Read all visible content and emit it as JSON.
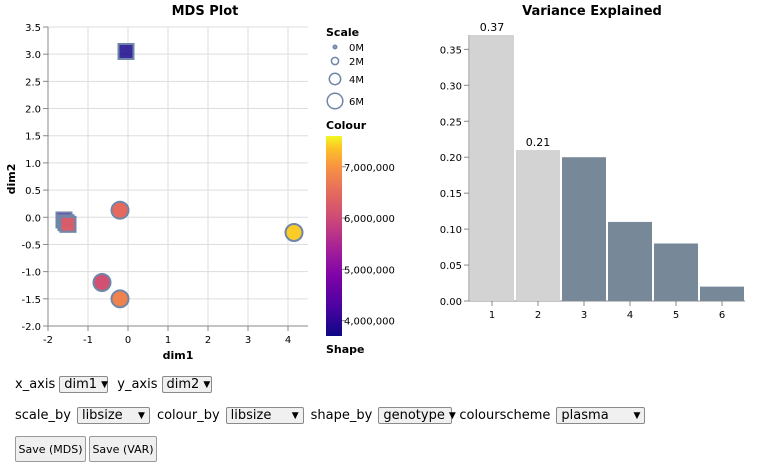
{
  "chart_data": [
    {
      "type": "scatter",
      "title": "MDS Plot",
      "xlabel": "dim1",
      "ylabel": "dim2",
      "xlim": [
        -2,
        4.5
      ],
      "ylim": [
        -2,
        3.5
      ],
      "x_ticks": [
        "-2",
        "-1",
        "0",
        "1",
        "2",
        "3",
        "4"
      ],
      "y_ticks": [
        "-2.0",
        "-1.5",
        "-1.0",
        "-0.5",
        "0.0",
        "0.5",
        "1.0",
        "1.5",
        "2.0",
        "2.5",
        "3.0",
        "3.5"
      ],
      "grid": true,
      "points": [
        {
          "x": -0.05,
          "y": 3.05,
          "shape": "square",
          "libsize": 3800000
        },
        {
          "x": -1.6,
          "y": -0.05,
          "shape": "square",
          "libsize": 4500000
        },
        {
          "x": -1.55,
          "y": -0.1,
          "shape": "square",
          "libsize": 6200000
        },
        {
          "x": -1.5,
          "y": -0.13,
          "shape": "square",
          "libsize": 6300000
        },
        {
          "x": -0.2,
          "y": 0.13,
          "shape": "circle",
          "libsize": 6500000
        },
        {
          "x": 4.15,
          "y": -0.28,
          "shape": "circle",
          "libsize": 7400000
        },
        {
          "x": -0.65,
          "y": -1.2,
          "shape": "circle",
          "libsize": 6100000
        },
        {
          "x": -0.2,
          "y": -1.5,
          "shape": "circle",
          "libsize": 6800000
        }
      ]
    },
    {
      "type": "bar",
      "title": "Variance Explained",
      "categories": [
        "1",
        "2",
        "3",
        "4",
        "5",
        "6"
      ],
      "values": [
        0.37,
        0.21,
        0.2,
        0.11,
        0.08,
        0.02
      ],
      "data_labels": [
        "0.37",
        "0.21",
        "",
        "",
        "",
        ""
      ],
      "bar_colors": [
        "#d3d3d3",
        "#d3d3d3",
        "#778899",
        "#778899",
        "#778899",
        "#778899"
      ],
      "ylim": [
        0,
        0.37
      ],
      "y_ticks": [
        "0.00",
        "0.05",
        "0.10",
        "0.15",
        "0.20",
        "0.25",
        "0.30",
        "0.35"
      ]
    }
  ],
  "legend": {
    "scale_title": "Scale",
    "scale_items": [
      {
        "label": "0M",
        "value": 0
      },
      {
        "label": "2M",
        "value": 2
      },
      {
        "label": "4M",
        "value": 4
      },
      {
        "label": "6M",
        "value": 6
      }
    ],
    "colour_title": "Colour",
    "colour_ticks": [
      "7,000,000",
      "6,000,000",
      "5,000,000",
      "4,000,000"
    ],
    "colour_range": [
      3700000,
      7600000
    ],
    "shape_title": "Shape"
  },
  "controls": {
    "x_axis_label": "x_axis",
    "x_axis_value": "dim1",
    "y_axis_label": "y_axis",
    "y_axis_value": "dim2",
    "scale_by_label": "scale_by",
    "scale_by_value": "libsize",
    "colour_by_label": "colour_by",
    "colour_by_value": "libsize",
    "shape_by_label": "shape_by",
    "shape_by_value": "genotype",
    "colourscheme_label": "colourscheme",
    "colourscheme_value": "plasma"
  },
  "buttons": {
    "save_mds": "Save (MDS)",
    "save_var": "Save (VAR)"
  },
  "colors": {
    "stroke": "#6f86a8",
    "grid": "#dddddd",
    "bar_selected": "#d3d3d3",
    "bar_unselected": "#778899"
  },
  "icons": {
    "dropdown": "triangle-down-icon"
  }
}
